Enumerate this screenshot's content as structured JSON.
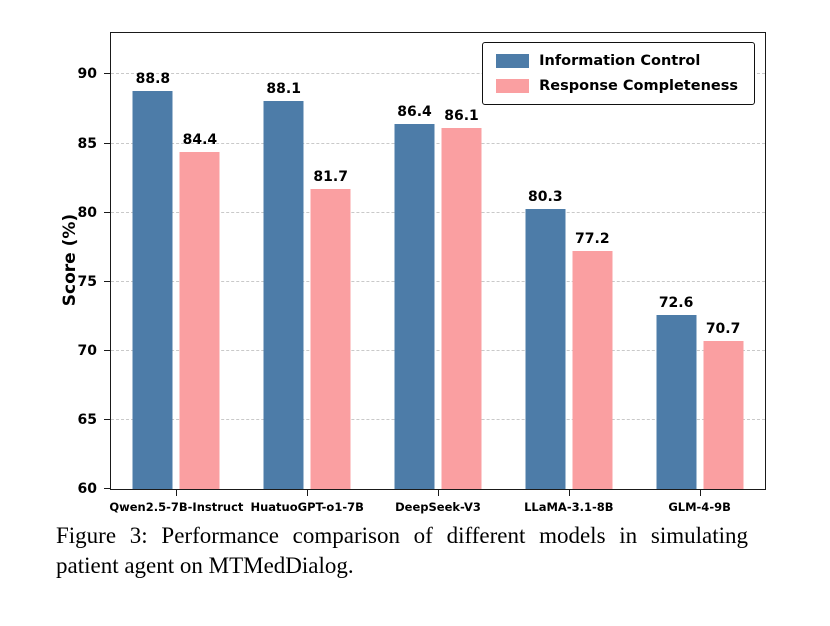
{
  "chart_data": {
    "type": "bar",
    "categories": [
      "Qwen2.5-7B-Instruct",
      "HuatuoGPT-o1-7B",
      "DeepSeek-V3",
      "LLaMA-3.1-8B",
      "GLM-4-9B"
    ],
    "series": [
      {
        "name": "Information Control",
        "color": "#4d7ca8",
        "values": [
          88.8,
          88.1,
          86.4,
          80.3,
          72.6
        ]
      },
      {
        "name": "Response Completeness",
        "color": "#fa9fa1",
        "values": [
          84.4,
          81.7,
          86.1,
          77.2,
          70.7
        ]
      }
    ],
    "title": "",
    "xlabel": "",
    "ylabel": "Score (%)",
    "ylim": [
      60,
      93
    ],
    "yticks": [
      60,
      65,
      70,
      75,
      80,
      85,
      90
    ],
    "grid": "horizontal dashed",
    "legend_position": "upper right",
    "value_labels_decimals": 1
  },
  "caption": "Figure 3: Performance comparison of different models in simulating patient agent on MTMedDialog."
}
